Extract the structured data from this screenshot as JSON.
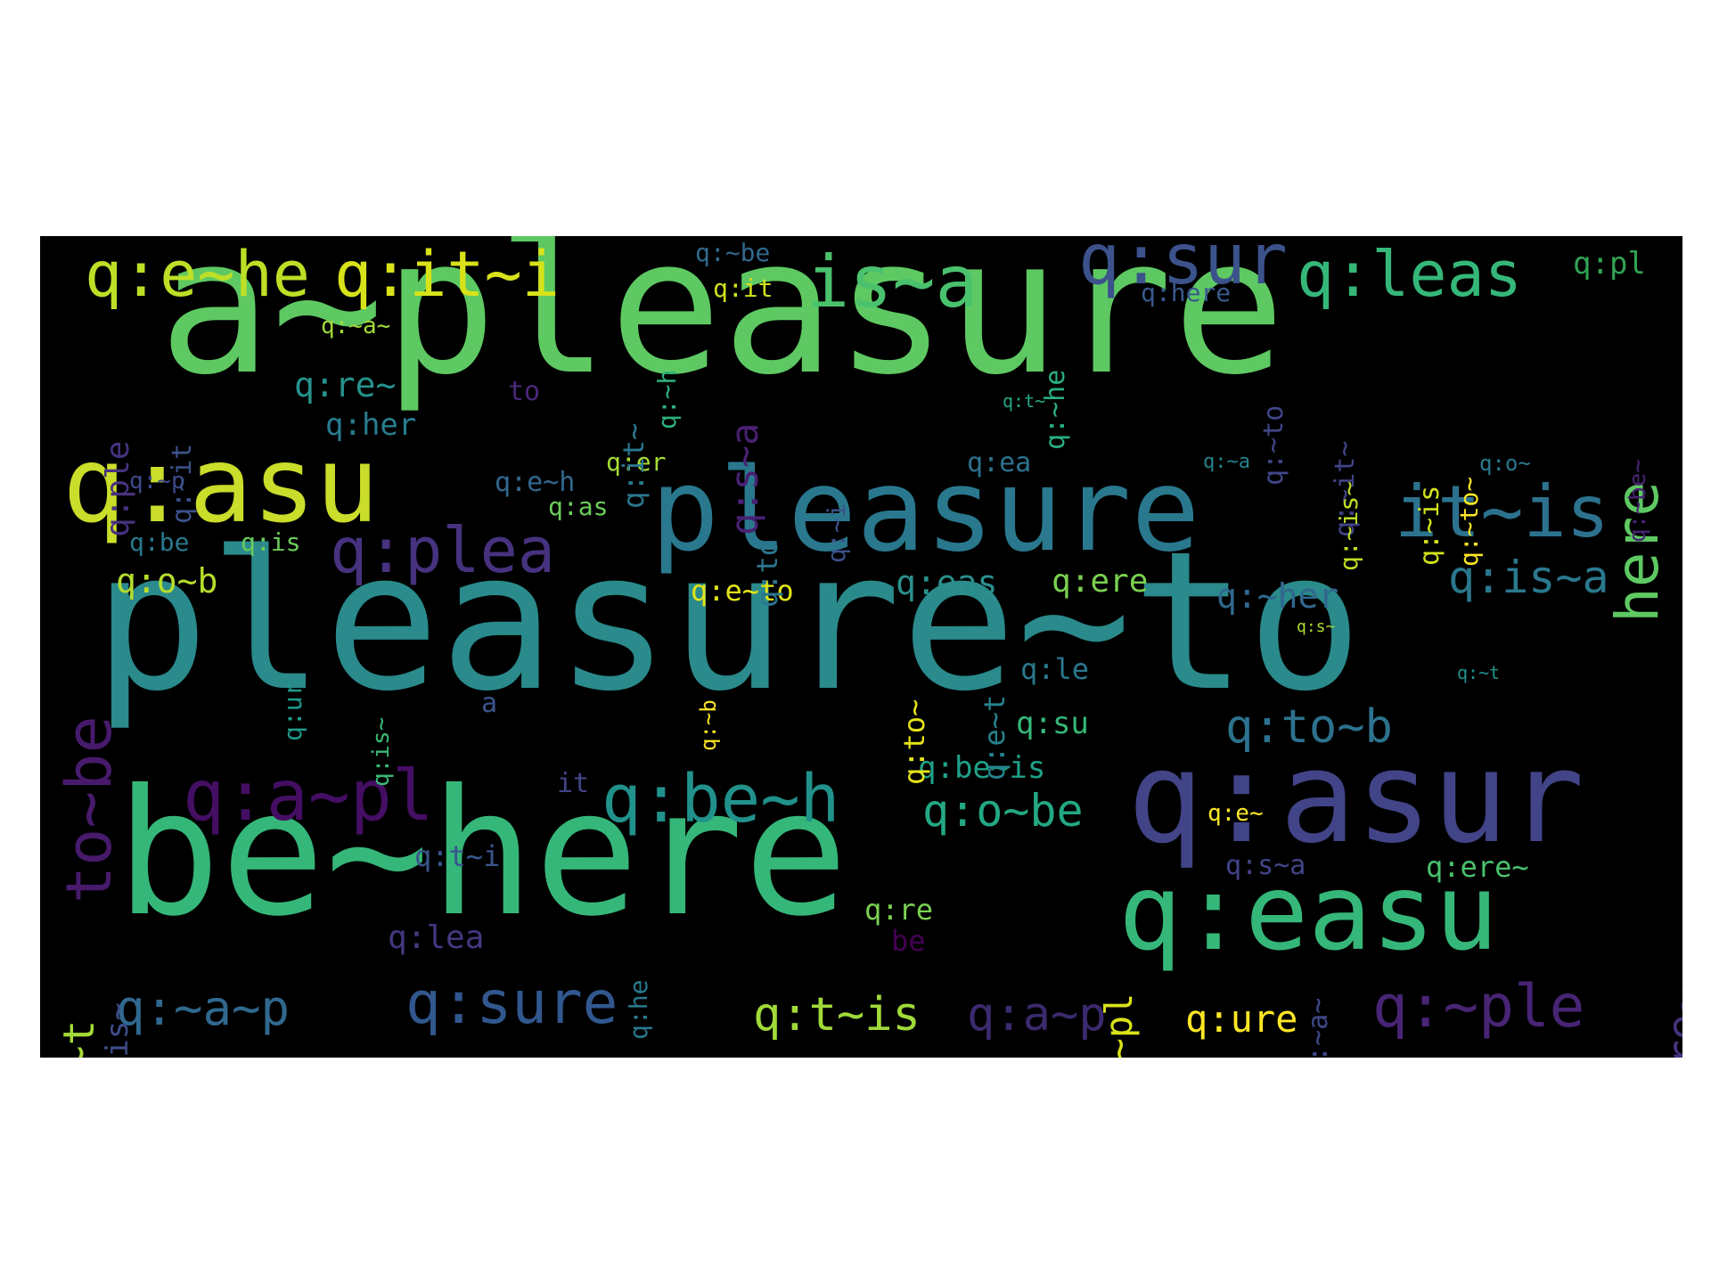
{
  "words": [
    {
      "text": "a~pleasure",
      "color": "#5ec962"
    },
    {
      "text": "pleasure~to",
      "color": "#2a8a8c"
    },
    {
      "text": "be~here",
      "color": "#35b779"
    },
    {
      "text": "pleasure",
      "color": "#2a788e"
    },
    {
      "text": "q:asur",
      "color": "#414487"
    },
    {
      "text": "q:easu",
      "color": "#35b779"
    },
    {
      "text": "q:asu",
      "color": "#c9dd2a"
    },
    {
      "text": "q:e~he",
      "color": "#bddf26"
    },
    {
      "text": "q:it~i",
      "color": "#d8e219"
    },
    {
      "text": "is~a",
      "color": "#4ac16d"
    },
    {
      "text": "q:sur",
      "color": "#3b528b"
    },
    {
      "text": "q:leas",
      "color": "#35b779"
    },
    {
      "text": "q:pl",
      "color": "#31a354"
    },
    {
      "text": "q:plea",
      "color": "#46327e"
    },
    {
      "text": "it~is",
      "color": "#2c728e"
    },
    {
      "text": "q:is~a",
      "color": "#2a788e"
    },
    {
      "text": "q:a~pl",
      "color": "#440e62"
    },
    {
      "text": "q:be~h",
      "color": "#21918c"
    },
    {
      "text": "q:o~be",
      "color": "#23a883"
    },
    {
      "text": "q:to~b",
      "color": "#2c728e"
    },
    {
      "text": "q:~a~p",
      "color": "#30688e"
    },
    {
      "text": "q:sure",
      "color": "#31578e"
    },
    {
      "text": "q:t~is",
      "color": "#a0da39"
    },
    {
      "text": "q:a~p",
      "color": "#3b2a6e"
    },
    {
      "text": "q:ure",
      "color": "#fde725"
    },
    {
      "text": "q:~ple",
      "color": "#482475"
    },
    {
      "text": "q:o~b",
      "color": "#b5de2b"
    },
    {
      "text": "q:~her",
      "color": "#31688e"
    },
    {
      "text": "q:eas",
      "color": "#2a8f8c"
    },
    {
      "text": "q:ere",
      "color": "#7ad151"
    },
    {
      "text": "q:e~to",
      "color": "#e2e418"
    },
    {
      "text": "q:re~",
      "color": "#26928c"
    },
    {
      "text": "q:her",
      "color": "#287c8e"
    },
    {
      "text": "q:as",
      "color": "#6ccd5a"
    },
    {
      "text": "q:be",
      "color": "#2a788e"
    },
    {
      "text": "q:is",
      "color": "#6ccd5a"
    },
    {
      "text": "q:e~h",
      "color": "#31688e"
    },
    {
      "text": "q:er",
      "color": "#a5db36"
    },
    {
      "text": "q:ea",
      "color": "#2c728e"
    },
    {
      "text": "q:~be",
      "color": "#31688e"
    },
    {
      "text": "q:it",
      "color": "#d2e21b"
    },
    {
      "text": "q:~a~",
      "color": "#a0da39"
    },
    {
      "text": "q:here",
      "color": "#38598c"
    },
    {
      "text": "q:le",
      "color": "#2a788e"
    },
    {
      "text": "q:su",
      "color": "#35b779"
    },
    {
      "text": "q:be~is",
      "color": "#1fa187"
    },
    {
      "text": "q:t~i",
      "color": "#39568c"
    },
    {
      "text": "q:lea",
      "color": "#453781"
    },
    {
      "text": "q:re",
      "color": "#7ad151"
    },
    {
      "text": "q:e~",
      "color": "#fde725"
    },
    {
      "text": "q:s~a",
      "color": "#414487"
    },
    {
      "text": "q:ere~",
      "color": "#4ac16d"
    },
    {
      "text": "q:~p",
      "color": "#3e4989"
    },
    {
      "text": "to",
      "color": "#482878"
    },
    {
      "text": "it",
      "color": "#414487"
    },
    {
      "text": "a",
      "color": "#3a548c"
    },
    {
      "text": "be",
      "color": "#440154"
    },
    {
      "text": "q:t~",
      "color": "#22a884"
    },
    {
      "text": "q:~a",
      "color": "#26828e"
    },
    {
      "text": "q:o~",
      "color": "#2a788e"
    },
    {
      "text": "q:s~",
      "color": "#addc30"
    },
    {
      "text": "q:~t",
      "color": "#20938c"
    },
    {
      "text": "here",
      "color": "#5ec962"
    },
    {
      "text": "to~be",
      "color": "#481a6c"
    },
    {
      "text": "q:re~t",
      "color": "#a5db36"
    },
    {
      "text": "q:~is~",
      "color": "#3d4e8a"
    },
    {
      "text": "q:~a~",
      "color": "#3e4989"
    },
    {
      "text": "q:~it",
      "color": "#3b528b"
    },
    {
      "text": "q:ple",
      "color": "#46327e"
    },
    {
      "text": "q:s~a",
      "color": "#482173"
    },
    {
      "text": "q:it~",
      "color": "#2a778e"
    },
    {
      "text": "q:~h",
      "color": "#2db27d"
    },
    {
      "text": "q:~he",
      "color": "#29af7f"
    },
    {
      "text": "q:~to",
      "color": "#404688"
    },
    {
      "text": "q:~it~",
      "color": "#414487"
    },
    {
      "text": "q:~is",
      "color": "#d2e21b"
    },
    {
      "text": "q:~to~",
      "color": "#fde725"
    },
    {
      "text": "q:~be~",
      "color": "#482475"
    },
    {
      "text": "q:to",
      "color": "#2b758e"
    },
    {
      "text": "q:~i",
      "color": "#3b528b"
    },
    {
      "text": "q:e~t",
      "color": "#26828e"
    },
    {
      "text": "q:to~",
      "color": "#e5e419"
    },
    {
      "text": "q:~b",
      "color": "#fde725"
    },
    {
      "text": "q:ur",
      "color": "#1f9a8a"
    },
    {
      "text": "q:is~",
      "color": "#3aba76"
    },
    {
      "text": "q:~pl",
      "color": "#d8e219"
    },
    {
      "text": "q:he",
      "color": "#2a788e"
    },
    {
      "text": "q:ure~",
      "color": "#46327e"
    },
    {
      "text": "q:~is~",
      "color": "#bddf26"
    }
  ]
}
